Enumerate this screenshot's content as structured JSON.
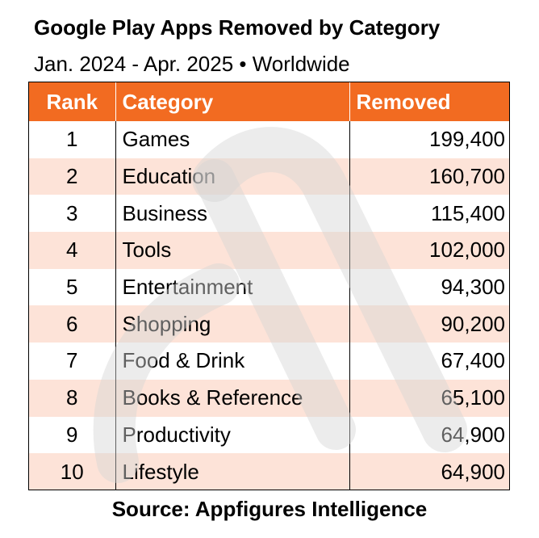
{
  "title": "Google Play Apps Removed by Category",
  "subtitle": "Jan. 2024 - Apr. 2025 • Worldwide",
  "source": "Source: Appfigures Intelligence",
  "colors": {
    "header_bg": "#f26b21",
    "header_text": "#ffffff",
    "alt_row": "#fcdacb",
    "watermark": "#d4d4d4"
  },
  "chart_data": {
    "type": "table",
    "title": "Google Play Apps Removed by Category",
    "subtitle": "Jan. 2024 - Apr. 2025 • Worldwide",
    "columns": [
      "Rank",
      "Category",
      "Removed"
    ],
    "rows": [
      {
        "rank": "1",
        "category": "Games",
        "removed": "199,400"
      },
      {
        "rank": "2",
        "category": "Education",
        "removed": "160,700"
      },
      {
        "rank": "3",
        "category": "Business",
        "removed": "115,400"
      },
      {
        "rank": "4",
        "category": "Tools",
        "removed": "102,000"
      },
      {
        "rank": "5",
        "category": "Entertainment",
        "removed": "94,300"
      },
      {
        "rank": "6",
        "category": "Shopping",
        "removed": "90,200"
      },
      {
        "rank": "7",
        "category": "Food & Drink",
        "removed": "67,400"
      },
      {
        "rank": "8",
        "category": "Books & Reference",
        "removed": "65,100"
      },
      {
        "rank": "9",
        "category": "Productivity",
        "removed": "64,900"
      },
      {
        "rank": "10",
        "category": "Lifestyle",
        "removed": "64,900"
      }
    ]
  }
}
